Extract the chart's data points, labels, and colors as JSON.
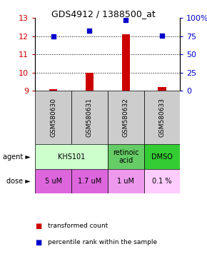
{
  "title": "GDS4912 / 1388500_at",
  "samples": [
    "GSM580630",
    "GSM580631",
    "GSM580632",
    "GSM580633"
  ],
  "bar_values": [
    9.1,
    10.0,
    12.1,
    9.2
  ],
  "bar_baseline": 9.0,
  "scatter_percentile": [
    75,
    82,
    97,
    76
  ],
  "ylim_left": [
    9,
    13
  ],
  "ylim_right": [
    0,
    100
  ],
  "yticks_left": [
    9,
    10,
    11,
    12,
    13
  ],
  "yticks_right": [
    0,
    25,
    50,
    75,
    100
  ],
  "bar_color": "#cc0000",
  "scatter_color": "#0000cc",
  "agent_spans": [
    [
      0,
      2,
      "KHS101",
      "#ccffcc"
    ],
    [
      2,
      3,
      "retinoic\nacid",
      "#66cc66"
    ],
    [
      3,
      4,
      "DMSO",
      "#33cc33"
    ]
  ],
  "dose_labels": [
    "5 uM",
    "1.7 uM",
    "1 uM",
    "0.1 %"
  ],
  "dose_colors": [
    "#dd66dd",
    "#dd66dd",
    "#ee99ee",
    "#ffccff"
  ],
  "sample_bg_color": "#cccccc",
  "legend_bar_label": "transformed count",
  "legend_scatter_label": "percentile rank within the sample"
}
